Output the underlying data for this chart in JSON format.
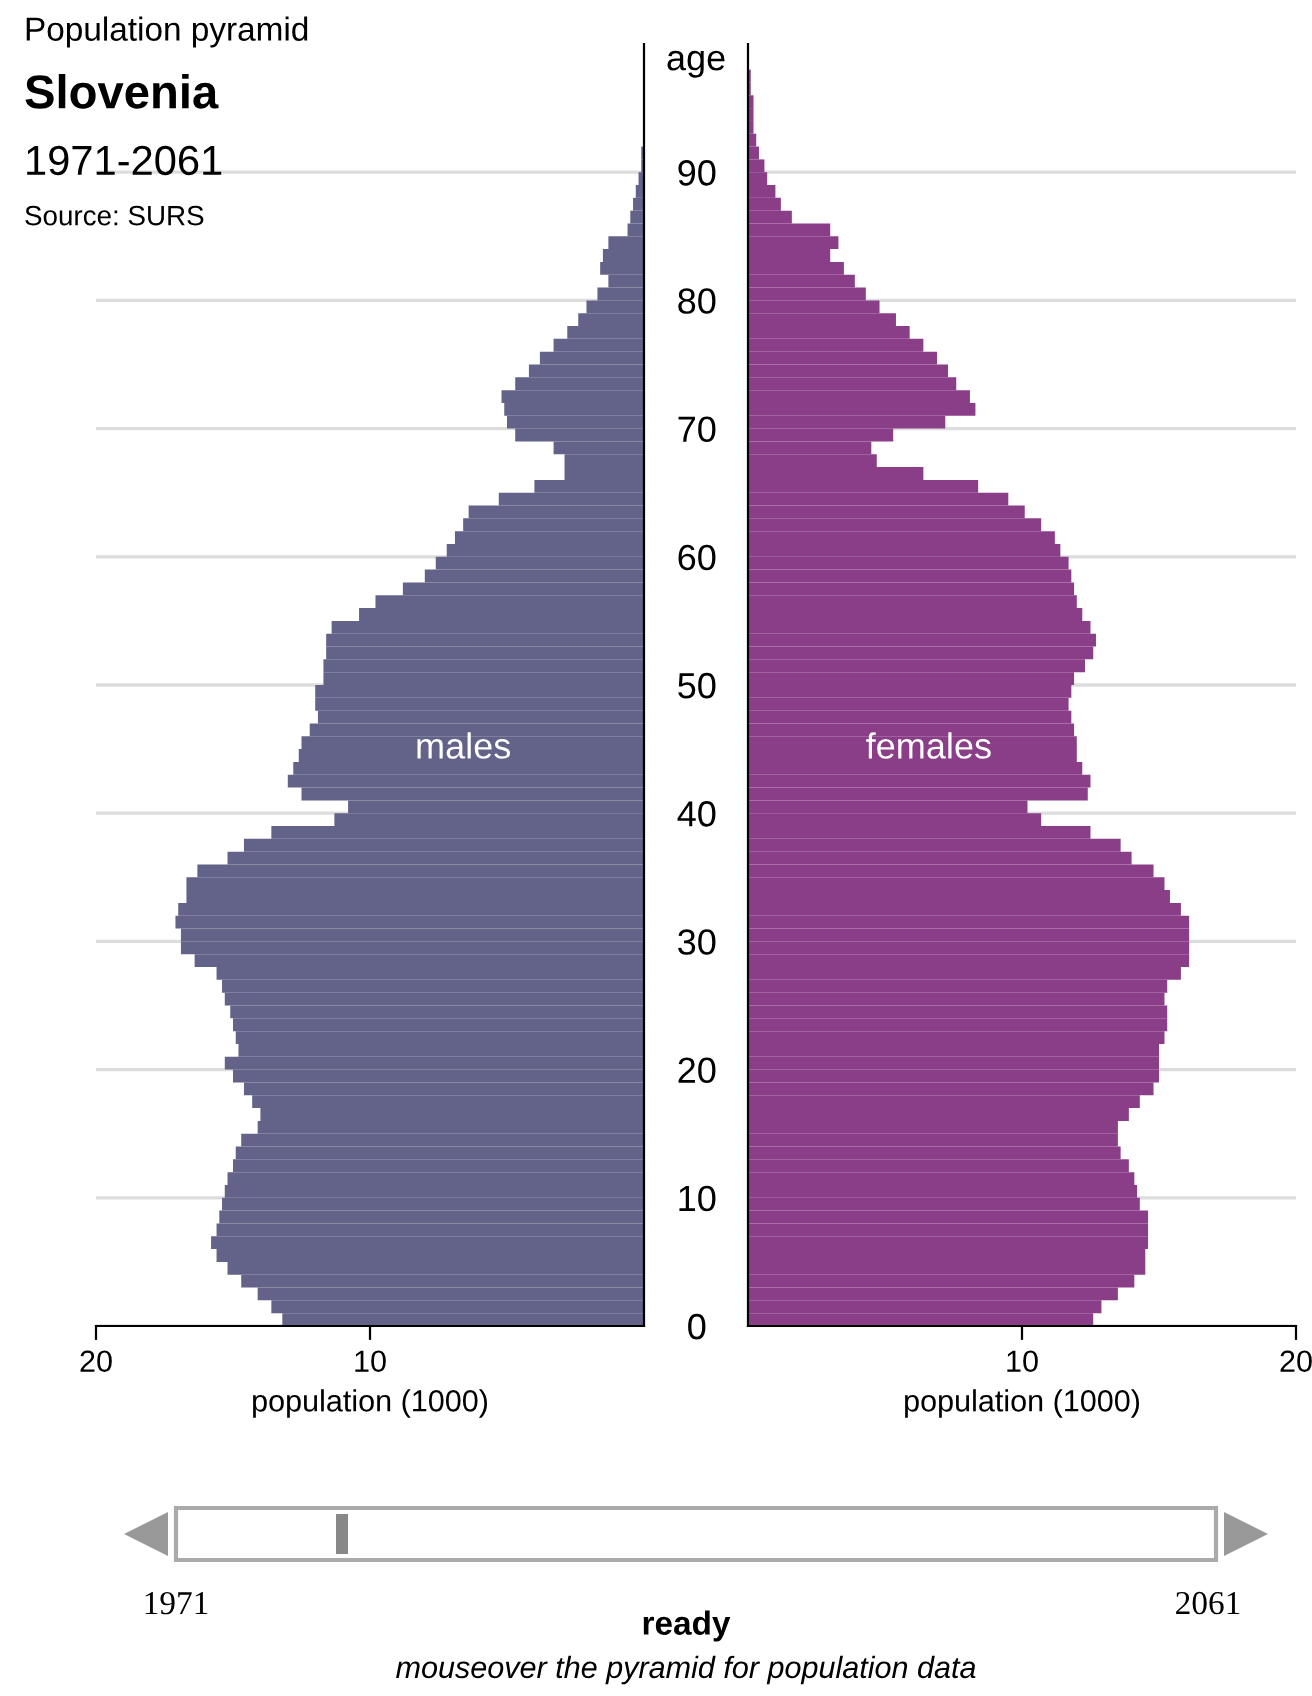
{
  "chart_data": [
    {
      "type": "bar",
      "orientation": "horizontal",
      "title": "Slovenia",
      "subtitle": "1971-2061",
      "annotations": [
        "Population pyramid",
        "Source: SURS",
        "1971",
        "2061",
        "ready",
        "mouseover the pyramid for population data"
      ],
      "xlabel": "population (1000)",
      "ylabel": "age",
      "x": [
        0,
        1,
        2,
        3,
        4,
        5,
        6,
        7,
        8,
        9,
        10,
        11,
        12,
        13,
        14,
        15,
        16,
        17,
        18,
        19,
        20,
        21,
        22,
        23,
        24,
        25,
        26,
        27,
        28,
        29,
        30,
        31,
        32,
        33,
        34,
        35,
        36,
        37,
        38,
        39,
        40,
        41,
        42,
        43,
        44,
        45,
        46,
        47,
        48,
        49,
        50,
        51,
        52,
        53,
        54,
        55,
        56,
        57,
        58,
        59,
        60,
        61,
        62,
        63,
        64,
        65,
        66,
        67,
        68,
        69,
        70,
        71,
        72,
        73,
        74,
        75,
        76,
        77,
        78,
        79,
        80,
        81,
        82,
        83,
        84,
        85,
        86,
        87,
        88,
        89,
        90,
        91,
        92,
        93,
        94,
        95,
        96,
        97
      ],
      "series": [
        {
          "name": "males",
          "color": "#636288",
          "values": [
            13.2,
            13.6,
            14.1,
            14.7,
            15.2,
            15.6,
            15.8,
            15.6,
            15.5,
            15.4,
            15.3,
            15.2,
            15.0,
            14.9,
            14.7,
            14.1,
            14.0,
            14.3,
            14.6,
            15.0,
            15.3,
            14.8,
            14.9,
            15.0,
            15.1,
            15.3,
            15.4,
            15.6,
            16.4,
            16.9,
            16.9,
            17.1,
            17.0,
            16.7,
            16.7,
            16.3,
            15.2,
            14.6,
            13.6,
            11.3,
            10.8,
            12.5,
            13.0,
            12.8,
            12.6,
            12.5,
            12.2,
            11.9,
            12.0,
            12.0,
            11.7,
            11.7,
            11.6,
            11.6,
            11.4,
            10.4,
            9.8,
            8.8,
            8.0,
            7.6,
            7.2,
            6.9,
            6.6,
            6.4,
            5.3,
            4.0,
            2.9,
            2.9,
            3.3,
            4.7,
            5.0,
            5.1,
            5.2,
            4.7,
            4.2,
            3.8,
            3.3,
            2.8,
            2.4,
            2.1,
            1.7,
            1.3,
            1.6,
            1.5,
            1.3,
            0.6,
            0.5,
            0.4,
            0.3,
            0.2,
            0.1,
            0.1,
            0,
            0,
            0,
            0,
            0,
            0
          ]
        }
      ],
      "xlim": [
        20,
        0
      ],
      "xticks": [
        20,
        10
      ],
      "ylim": [
        0,
        100
      ],
      "yticks": [
        0,
        10,
        20,
        30,
        40,
        50,
        60,
        70,
        80,
        90
      ],
      "grid": "y"
    },
    {
      "type": "bar",
      "orientation": "horizontal",
      "xlabel": "population (1000)",
      "x": [
        0,
        1,
        2,
        3,
        4,
        5,
        6,
        7,
        8,
        9,
        10,
        11,
        12,
        13,
        14,
        15,
        16,
        17,
        18,
        19,
        20,
        21,
        22,
        23,
        24,
        25,
        26,
        27,
        28,
        29,
        30,
        31,
        32,
        33,
        34,
        35,
        36,
        37,
        38,
        39,
        40,
        41,
        42,
        43,
        44,
        45,
        46,
        47,
        48,
        49,
        50,
        51,
        52,
        53,
        54,
        55,
        56,
        57,
        58,
        59,
        60,
        61,
        62,
        63,
        64,
        65,
        66,
        67,
        68,
        69,
        70,
        71,
        72,
        73,
        74,
        75,
        76,
        77,
        78,
        79,
        80,
        81,
        82,
        83,
        84,
        85,
        86,
        87,
        88,
        89,
        90,
        91,
        92,
        93,
        94,
        95,
        96,
        97
      ],
      "series": [
        {
          "name": "females",
          "color": "#8b3e88",
          "values": [
            12.6,
            12.9,
            13.5,
            14.1,
            14.5,
            14.5,
            14.6,
            14.6,
            14.6,
            14.3,
            14.2,
            14.1,
            13.9,
            13.6,
            13.5,
            13.5,
            13.9,
            14.3,
            14.8,
            15.0,
            15.0,
            15.0,
            15.2,
            15.3,
            15.3,
            15.2,
            15.3,
            15.8,
            16.1,
            16.1,
            16.1,
            16.1,
            15.8,
            15.4,
            15.2,
            14.8,
            14.0,
            13.6,
            12.5,
            10.7,
            10.2,
            12.4,
            12.5,
            12.2,
            12.0,
            12.0,
            11.9,
            11.8,
            11.7,
            11.8,
            11.9,
            12.3,
            12.6,
            12.7,
            12.5,
            12.2,
            12.0,
            11.9,
            11.8,
            11.7,
            11.4,
            11.2,
            10.7,
            10.1,
            9.5,
            8.4,
            6.4,
            4.7,
            4.5,
            5.3,
            7.2,
            8.3,
            8.1,
            7.6,
            7.3,
            6.9,
            6.4,
            5.9,
            5.4,
            4.8,
            4.3,
            3.9,
            3.5,
            3.0,
            3.3,
            3.0,
            1.6,
            1.2,
            1.0,
            0.7,
            0.6,
            0.4,
            0.3,
            0.2,
            0.2,
            0.2,
            0.1,
            0.1
          ]
        }
      ],
      "xlim": [
        0,
        20
      ],
      "xticks": [
        10,
        20
      ],
      "ylim": [
        0,
        100
      ],
      "yticks": [
        0,
        10,
        20,
        30,
        40,
        50,
        60,
        70,
        80,
        90
      ],
      "grid": "y",
      "tick_labels": "x"
    }
  ]
}
